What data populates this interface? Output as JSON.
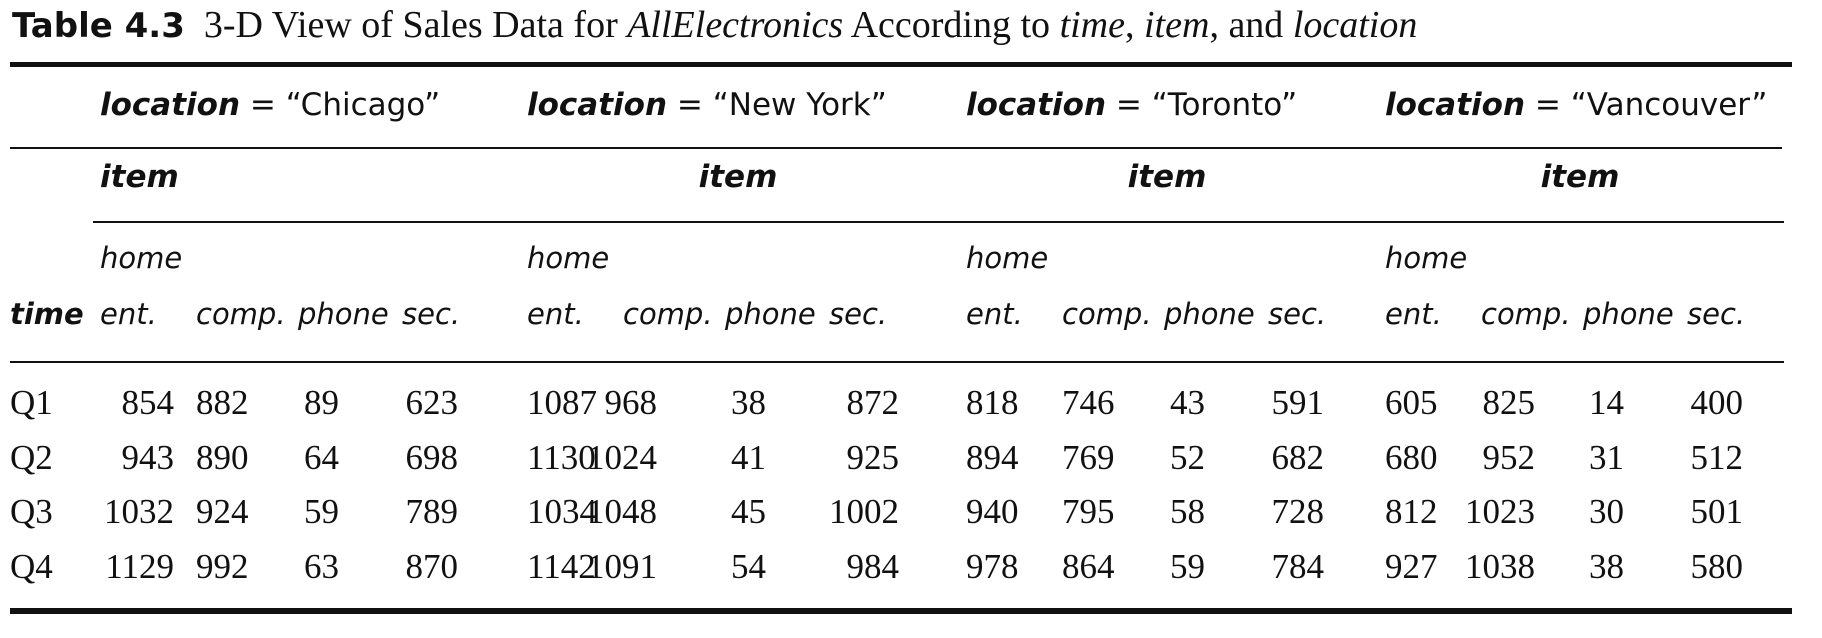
{
  "caption": {
    "label": "Table 4.3",
    "parts": [
      {
        "text": "3-D View of Sales Data for ",
        "italic": false
      },
      {
        "text": "AllElectronics",
        "italic": true
      },
      {
        "text": " According to ",
        "italic": false
      },
      {
        "text": "time",
        "italic": true
      },
      {
        "text": ", ",
        "italic": false
      },
      {
        "text": "item",
        "italic": true
      },
      {
        "text": ", and ",
        "italic": false
      },
      {
        "text": "location",
        "italic": true
      }
    ]
  },
  "table": {
    "time_header": "time",
    "item_header": "item",
    "dimension_label": "location",
    "equals": "=",
    "locations": [
      {
        "name": "“Chicago”"
      },
      {
        "name": "“New York”"
      },
      {
        "name": "“Toronto”"
      },
      {
        "name": "“Vancouver”"
      }
    ],
    "item_columns": [
      {
        "top": "home",
        "bottom": "ent."
      },
      {
        "top": "",
        "bottom": "comp."
      },
      {
        "top": "",
        "bottom": "phone"
      },
      {
        "top": "",
        "bottom": "sec."
      }
    ],
    "rows": [
      {
        "time": "Q1",
        "values": [
          [
            854,
            882,
            89,
            623
          ],
          [
            1087,
            968,
            38,
            872
          ],
          [
            818,
            746,
            43,
            591
          ],
          [
            605,
            825,
            14,
            400
          ]
        ]
      },
      {
        "time": "Q2",
        "values": [
          [
            943,
            890,
            64,
            698
          ],
          [
            1130,
            1024,
            41,
            925
          ],
          [
            894,
            769,
            52,
            682
          ],
          [
            680,
            952,
            31,
            512
          ]
        ]
      },
      {
        "time": "Q3",
        "values": [
          [
            1032,
            924,
            59,
            789
          ],
          [
            1034,
            1048,
            45,
            1002
          ],
          [
            940,
            795,
            58,
            728
          ],
          [
            812,
            1023,
            30,
            501
          ]
        ]
      },
      {
        "time": "Q4",
        "values": [
          [
            1129,
            992,
            63,
            870
          ],
          [
            1142,
            1091,
            54,
            984
          ],
          [
            978,
            864,
            59,
            784
          ],
          [
            927,
            1038,
            38,
            580
          ]
        ]
      }
    ]
  }
}
